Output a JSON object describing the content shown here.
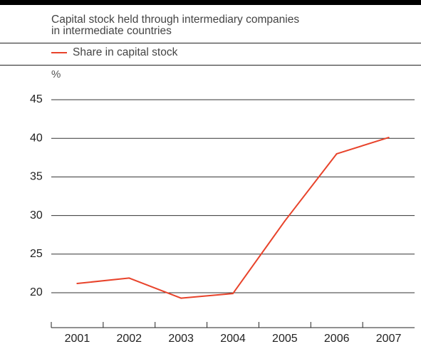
{
  "colors": {
    "series": "#e8432b",
    "rules": "#222222",
    "grid": "#333333"
  },
  "chart_data": {
    "type": "line",
    "title_lines": [
      "Capital stock held through intermediary companies",
      "in intermediate countries"
    ],
    "ylabel": "%",
    "xlabel": "",
    "categories": [
      "2001",
      "2002",
      "2003",
      "2004",
      "2005",
      "2006",
      "2007"
    ],
    "series": [
      {
        "name": "Share in capital stock",
        "values": [
          21.2,
          21.9,
          19.3,
          19.9,
          29.3,
          38.0,
          40.1
        ]
      }
    ],
    "yticks": [
      20,
      25,
      30,
      35,
      40,
      45
    ],
    "ylim": [
      16,
      46
    ],
    "grid": true,
    "legend_position": "top-left"
  }
}
